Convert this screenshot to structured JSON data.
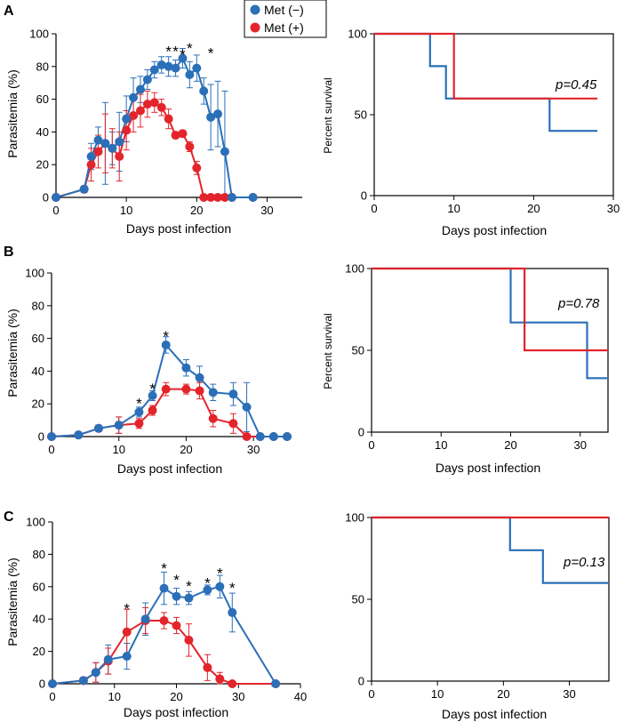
{
  "colors": {
    "met_minus": "#2a6fb8",
    "met_plus": "#e3242b",
    "axis": "#000000"
  },
  "legend": [
    {
      "label": "Met (−)",
      "color": "#2a6fb8"
    },
    {
      "label": "Met (+)",
      "color": "#e3242b"
    }
  ],
  "chart_data": [
    {
      "panel": "A",
      "type": "line",
      "xlabel": "Days post infection",
      "ylabel": "Parasitemia (%)",
      "xlim": [
        0,
        35
      ],
      "ylim": [
        0,
        100
      ],
      "xticks": [
        0,
        10,
        20,
        30
      ],
      "yticks": [
        0,
        20,
        40,
        60,
        80,
        100
      ],
      "series": [
        {
          "name": "Met (−)",
          "x": [
            0,
            4,
            5,
            6,
            7,
            8,
            9,
            10,
            11,
            12,
            13,
            14,
            15,
            16,
            17,
            18,
            19,
            20,
            21,
            22,
            23,
            24,
            25,
            28
          ],
          "y": [
            0,
            5,
            25,
            35,
            33,
            30,
            34,
            48,
            61,
            66,
            72,
            78,
            81,
            80,
            79,
            85,
            75,
            79,
            65,
            49,
            51,
            28,
            0,
            0
          ],
          "err": [
            0,
            2,
            8,
            8,
            25,
            10,
            18,
            14,
            12,
            8,
            6,
            5,
            5,
            6,
            5,
            6,
            8,
            8,
            8,
            20,
            20,
            37,
            0,
            0
          ]
        },
        {
          "name": "Met (+)",
          "x": [
            0,
            4,
            5,
            6,
            7,
            8,
            9,
            10,
            11,
            12,
            13,
            14,
            15,
            16,
            17,
            18,
            19,
            20,
            21,
            22,
            23,
            24,
            25,
            28
          ],
          "y": [
            0,
            5,
            20,
            28,
            33,
            30,
            25,
            41,
            50,
            53,
            57,
            58,
            55,
            48,
            38,
            39,
            31,
            18,
            0,
            0,
            0,
            0,
            0,
            0
          ],
          "err": [
            0,
            2,
            10,
            10,
            18,
            12,
            15,
            12,
            10,
            10,
            8,
            6,
            5,
            6,
            2,
            2,
            3,
            4,
            0,
            0,
            0,
            0,
            0,
            0
          ]
        }
      ],
      "significance": [
        {
          "x": 16,
          "y": 91,
          "label": "*"
        },
        {
          "x": 17,
          "y": 91,
          "label": "*"
        },
        {
          "x": 18,
          "y": 89,
          "label": "*"
        },
        {
          "x": 19,
          "y": 93,
          "label": "*"
        },
        {
          "x": 22,
          "y": 90,
          "label": "*"
        }
      ]
    },
    {
      "panel": "A",
      "type": "line",
      "kind": "survival",
      "xlabel": "Days post infection",
      "ylabel": "Percent survival",
      "xlim": [
        0,
        30
      ],
      "ylim": [
        0,
        100
      ],
      "xticks": [
        0,
        10,
        20,
        30
      ],
      "yticks": [
        0,
        50,
        100
      ],
      "series": [
        {
          "name": "Met (−)",
          "x": [
            0,
            7,
            7,
            9,
            9,
            22,
            22,
            28
          ],
          "y": [
            100,
            100,
            80,
            80,
            60,
            60,
            40,
            40
          ]
        },
        {
          "name": "Met (+)",
          "x": [
            0,
            10,
            10,
            28
          ],
          "y": [
            100,
            100,
            60,
            60
          ]
        }
      ],
      "pvalue": "p=0.45"
    },
    {
      "panel": "B",
      "type": "line",
      "xlabel": "Days post infection",
      "ylabel": "Parasitemia (%)",
      "xlim": [
        0,
        35
      ],
      "ylim": [
        0,
        100
      ],
      "xticks": [
        0,
        10,
        20,
        30
      ],
      "yticks": [
        0,
        20,
        40,
        60,
        80,
        100
      ],
      "series": [
        {
          "name": "Met (−)",
          "x": [
            0,
            4,
            7,
            10,
            13,
            15,
            17,
            20,
            22,
            24,
            27,
            29,
            31,
            33,
            35
          ],
          "y": [
            0,
            1,
            5,
            7,
            15,
            25,
            56,
            42,
            36,
            27,
            26,
            18,
            0,
            0,
            0
          ],
          "err": [
            0,
            1,
            2,
            5,
            3,
            3,
            5,
            5,
            7,
            5,
            7,
            15,
            0,
            0,
            0
          ]
        },
        {
          "name": "Met (+)",
          "x": [
            0,
            4,
            7,
            10,
            13,
            15,
            17,
            20,
            22,
            24,
            27,
            29,
            31,
            33,
            35
          ],
          "y": [
            0,
            1,
            5,
            7,
            8,
            16,
            29,
            29,
            28,
            11,
            8,
            0,
            0,
            0,
            0
          ],
          "err": [
            0,
            1,
            2,
            5,
            3,
            3,
            4,
            3,
            5,
            5,
            6,
            0,
            0,
            0,
            0
          ]
        }
      ],
      "significance": [
        {
          "x": 13,
          "y": 22,
          "label": "*"
        },
        {
          "x": 15,
          "y": 31,
          "label": "*"
        },
        {
          "x": 17,
          "y": 63,
          "label": "*"
        }
      ]
    },
    {
      "panel": "B",
      "type": "line",
      "kind": "survival",
      "xlabel": "Days post infection",
      "ylabel": "Percent survival",
      "xlim": [
        0,
        34
      ],
      "ylim": [
        0,
        100
      ],
      "xticks": [
        0,
        10,
        20,
        30
      ],
      "yticks": [
        0,
        50,
        100
      ],
      "series": [
        {
          "name": "Met (−)",
          "x": [
            0,
            20,
            20,
            31,
            31,
            34
          ],
          "y": [
            100,
            100,
            67,
            67,
            33,
            33
          ]
        },
        {
          "name": "Met (+)",
          "x": [
            0,
            22,
            22,
            34
          ],
          "y": [
            100,
            100,
            50,
            50
          ]
        }
      ],
      "pvalue": "p=0.78"
    },
    {
      "panel": "C",
      "type": "line",
      "xlabel": "Days post infection",
      "ylabel": "Parasitemia (%)",
      "xlim": [
        0,
        40
      ],
      "ylim": [
        0,
        100
      ],
      "xticks": [
        0,
        10,
        20,
        30,
        40
      ],
      "yticks": [
        0,
        20,
        40,
        60,
        80,
        100
      ],
      "series": [
        {
          "name": "Met (−)",
          "x": [
            0,
            5,
            7,
            9,
            12,
            15,
            18,
            20,
            22,
            25,
            27,
            29,
            36
          ],
          "y": [
            0,
            2,
            7,
            15,
            17,
            40,
            59,
            54,
            53,
            58,
            60,
            44,
            0
          ],
          "err": [
            0,
            2,
            6,
            9,
            8,
            10,
            10,
            5,
            4,
            3,
            7,
            12,
            0
          ]
        },
        {
          "name": "Met (+)",
          "x": [
            0,
            5,
            7,
            9,
            12,
            15,
            18,
            20,
            22,
            25,
            27,
            29,
            36
          ],
          "y": [
            0,
            2,
            7,
            14,
            32,
            39,
            39,
            36,
            27,
            10,
            3,
            0,
            0
          ],
          "err": [
            0,
            2,
            6,
            8,
            14,
            8,
            5,
            5,
            10,
            8,
            4,
            0,
            0
          ]
        }
      ],
      "significance": [
        {
          "x": 12,
          "y": 48,
          "label": "*"
        },
        {
          "x": 18,
          "y": 73,
          "label": "*"
        },
        {
          "x": 20,
          "y": 66,
          "label": "*"
        },
        {
          "x": 22,
          "y": 62,
          "label": "*"
        },
        {
          "x": 25,
          "y": 64,
          "label": "*"
        },
        {
          "x": 27,
          "y": 70,
          "label": "*"
        },
        {
          "x": 29,
          "y": 61,
          "label": "*"
        }
      ]
    },
    {
      "panel": "C",
      "type": "line",
      "kind": "survival",
      "xlabel": "Days post infection",
      "ylabel": "",
      "xlim": [
        0,
        36
      ],
      "ylim": [
        0,
        100
      ],
      "xticks": [
        0,
        10,
        20,
        30
      ],
      "yticks": [
        0,
        50,
        100
      ],
      "series": [
        {
          "name": "Met (−)",
          "x": [
            0,
            21,
            21,
            26,
            26,
            36
          ],
          "y": [
            100,
            100,
            80,
            80,
            60,
            60
          ]
        },
        {
          "name": "Met (+)",
          "x": [
            0,
            36
          ],
          "y": [
            100,
            100
          ]
        }
      ],
      "pvalue": "p=0.13"
    }
  ]
}
